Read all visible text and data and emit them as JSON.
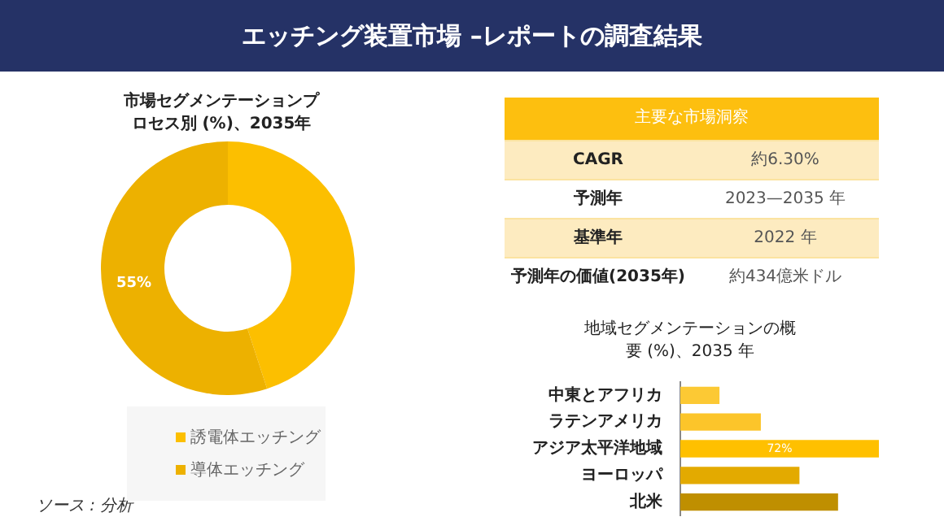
{
  "chart_data": [
    {
      "type": "other",
      "title": "エッチング装置市場 –レポートの調査結果",
      "subtitle": "主要な市場洞察",
      "annotations": [
        "CAGR",
        "約6.30%",
        "予測年",
        "2023—2035 年",
        "基準年",
        "2022 年",
        "予測年の価値(2035年)",
        "約434億米ドル",
        "ソース : 分析"
      ]
    },
    {
      "type": "donut",
      "title": "市場セグメンテーションプロセス別 (%)、2035年",
      "categories": [
        "誘電体エッチング",
        "導体エッチング"
      ],
      "values": [
        45,
        55
      ],
      "colors": [
        "#fcbf00",
        "#edb100"
      ],
      "value_labels": [
        null,
        "55%"
      ],
      "legend": "bottom"
    },
    {
      "type": "bar",
      "orientation": "horizontal",
      "title": "地域セグメンテーションの概要 (%)、2035 年",
      "categories": [
        "中東とアフリカ",
        "ラテンアメリカ",
        "アジア太平洋地域",
        "ヨーロッパ",
        "北米"
      ],
      "values": [
        14,
        29,
        72,
        43,
        57
      ],
      "colors": [
        "#fcc934",
        "#fcc52a",
        "#ffc000",
        "#e3aa00",
        "#bf8f00"
      ],
      "value_labels": [
        null,
        null,
        "72%",
        null,
        null
      ]
    }
  ]
}
